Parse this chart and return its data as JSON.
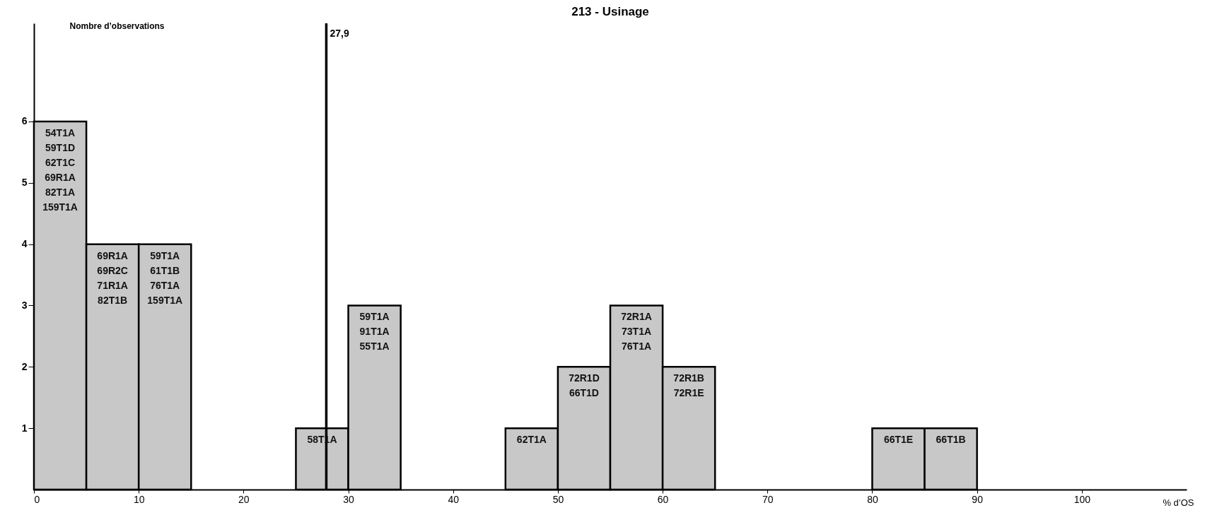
{
  "chart_data": {
    "type": "histogram",
    "title": "213 - Usinage",
    "xlabel": "% d’OS",
    "ylabel": "Nombre d’observations",
    "bins": [
      0,
      5,
      10,
      15,
      20,
      25,
      30,
      35,
      40,
      45,
      50,
      55,
      60,
      65,
      70,
      75,
      80,
      85,
      90
    ],
    "values": [
      6,
      4,
      4,
      0,
      0,
      1,
      3,
      0,
      0,
      1,
      2,
      3,
      2,
      0,
      0,
      0,
      1,
      1
    ],
    "color": "#c8c8c8",
    "xlim": [
      0,
      110
    ],
    "xticks": [
      0,
      10,
      20,
      30,
      40,
      50,
      60,
      70,
      80,
      90,
      100
    ],
    "ylim": [
      0,
      7.6
    ],
    "yticks": [
      1,
      2,
      3,
      4,
      5,
      6
    ],
    "ref_lines": [
      {
        "axis": "x",
        "value": 27.9,
        "label": "27,9",
        "color": "#000000"
      }
    ],
    "annotations": [
      {
        "text": "54T1A\n59T1D\n62T1C\n69R1A\n82T1A\n159T1A",
        "x": 2.5,
        "y": 6
      },
      {
        "text": "69R1A\n69R2C\n71R1A\n82T1B",
        "x": 7.5,
        "y": 4
      },
      {
        "text": "59T1A\n61T1B\n76T1A\n159T1A",
        "x": 12.5,
        "y": 4
      },
      {
        "text": "58T1A",
        "x": 27.5,
        "y": 1
      },
      {
        "text": "59T1A\n91T1A\n55T1A",
        "x": 32.5,
        "y": 3
      },
      {
        "text": "62T1A",
        "x": 47.5,
        "y": 1
      },
      {
        "text": "72R1D\n66T1D",
        "x": 52.5,
        "y": 2
      },
      {
        "text": "72R1A\n73T1A\n76T1A",
        "x": 57.5,
        "y": 3
      },
      {
        "text": "72R1B\n72R1E",
        "x": 62.5,
        "y": 2
      },
      {
        "text": "66T1E",
        "x": 82.5,
        "y": 1
      },
      {
        "text": "66T1B",
        "x": 87.5,
        "y": 1
      }
    ]
  }
}
